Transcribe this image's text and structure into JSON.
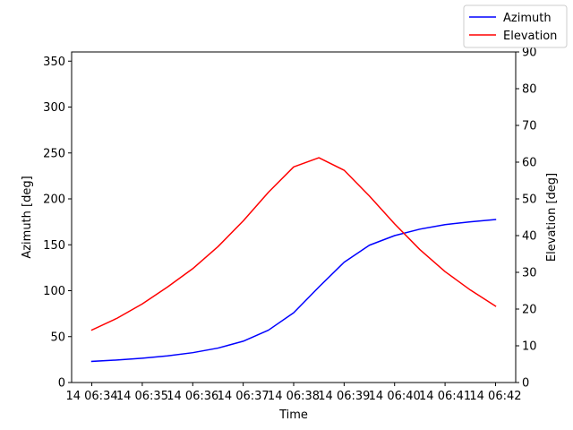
{
  "chart_data": {
    "type": "line",
    "title": "",
    "xlabel": "Time",
    "ylabel_left": "Azimuth [deg]",
    "ylabel_right": "Elevation [deg]",
    "x_ticks": [
      "14 06:34",
      "14 06:35",
      "14 06:36",
      "14 06:37",
      "14 06:38",
      "14 06:39",
      "14 06:40",
      "14 06:41",
      "14 06:42"
    ],
    "x_minutes": [
      -0.4,
      8.4
    ],
    "ylim_left": [
      0,
      360
    ],
    "yticks_left": [
      0,
      50,
      100,
      150,
      200,
      250,
      300,
      350
    ],
    "ylim_right": [
      0,
      90
    ],
    "yticks_right": [
      0,
      10,
      20,
      30,
      40,
      50,
      60,
      70,
      80,
      90
    ],
    "grid": false,
    "legend_position": "top-right",
    "series": [
      {
        "name": "Azimuth",
        "axis": "left",
        "color": "#0000ff",
        "x": [
          0.0,
          0.5,
          1.0,
          1.5,
          2.0,
          2.5,
          3.0,
          3.5,
          4.0,
          4.5,
          5.0,
          5.5,
          6.0,
          6.5,
          7.0,
          7.5,
          8.0
        ],
        "values": [
          23,
          24.5,
          26.5,
          29,
          32.5,
          37.5,
          45,
          57,
          76,
          104,
          131,
          149.5,
          160,
          167,
          172,
          175,
          177.5
        ]
      },
      {
        "name": "Elevation",
        "axis": "right",
        "color": "#ff0000",
        "x": [
          0.0,
          0.5,
          1.0,
          1.5,
          2.0,
          2.5,
          3.0,
          3.5,
          4.0,
          4.5,
          5.0,
          5.5,
          6.0,
          6.5,
          7.0,
          7.5,
          8.0
        ],
        "values": [
          14.3,
          17.5,
          21.4,
          26.0,
          31.0,
          37.0,
          44.0,
          51.8,
          58.7,
          61.2,
          57.8,
          50.8,
          43.2,
          36.2,
          30.2,
          25.2,
          20.8
        ]
      }
    ]
  }
}
